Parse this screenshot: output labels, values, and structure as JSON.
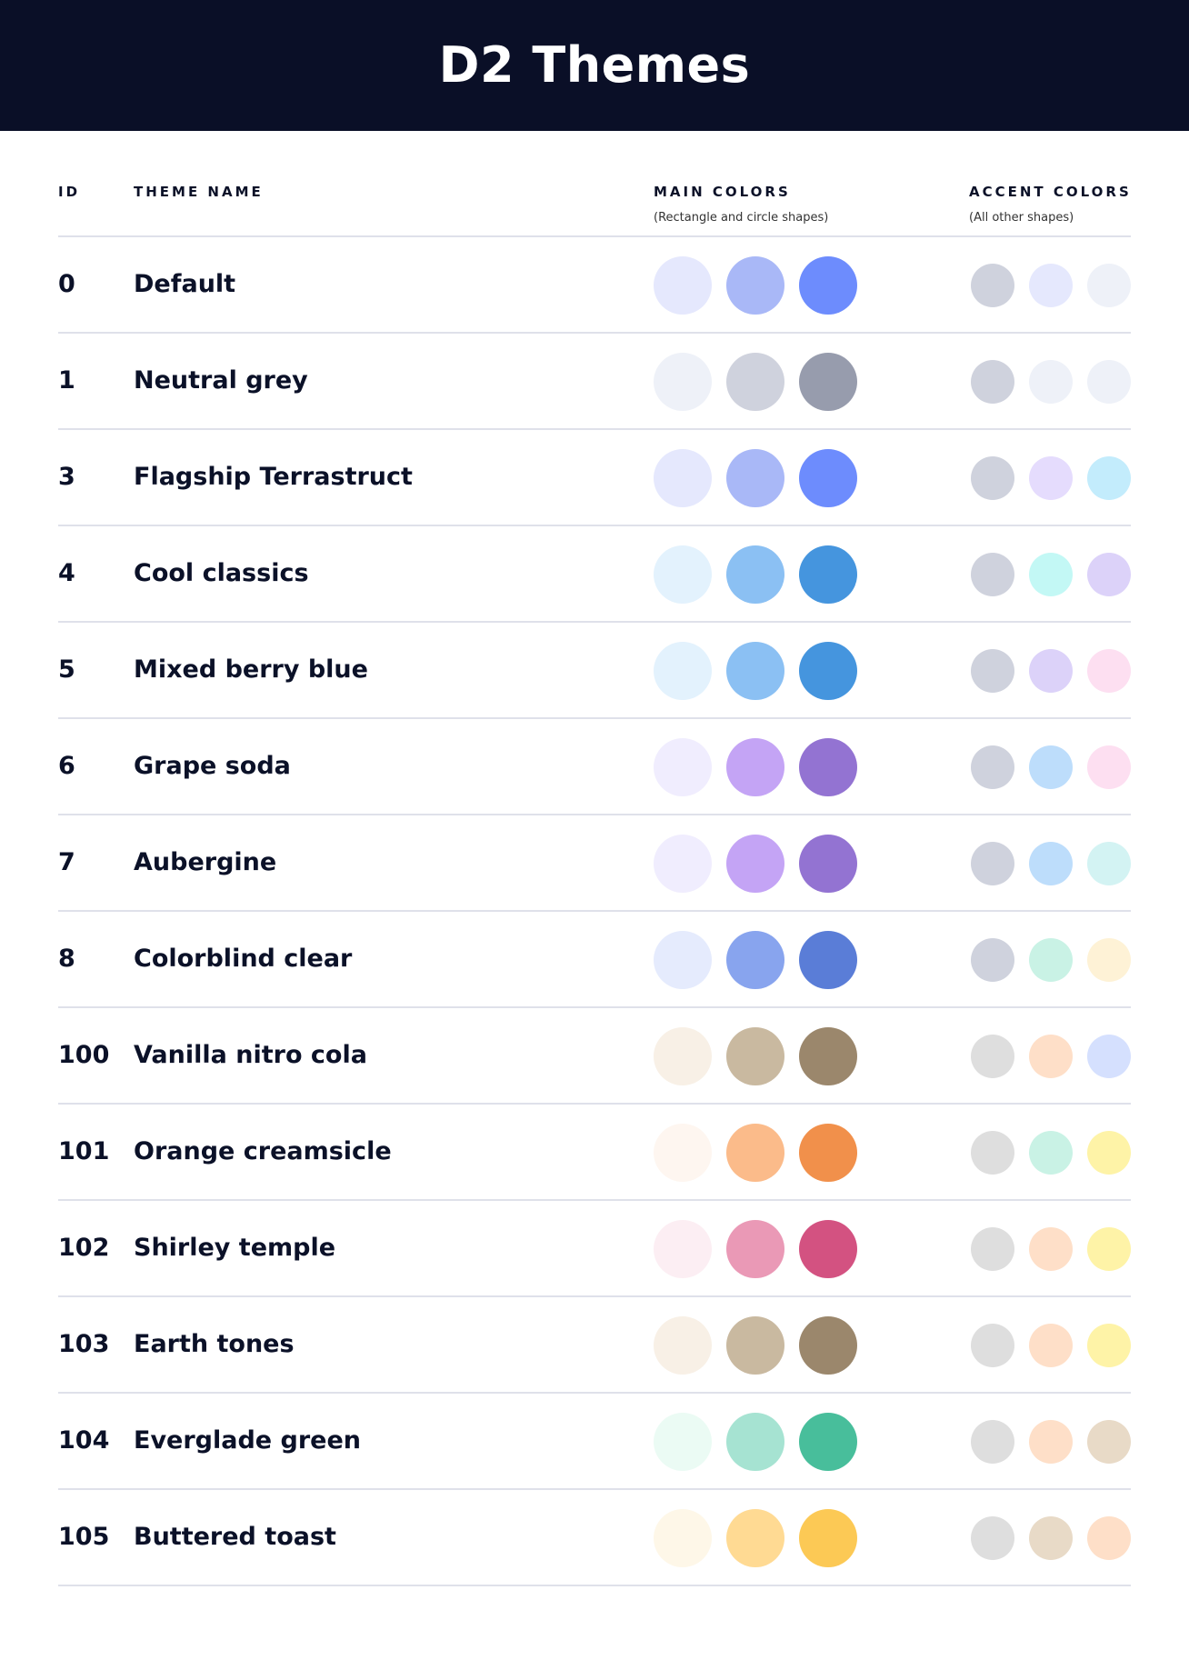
{
  "title": "D2 Themes",
  "headers": {
    "id": "ID",
    "name": "THEME NAME",
    "main": "MAIN COLORS",
    "main_sub": "(Rectangle and circle shapes)",
    "accent": "ACCENT COLORS",
    "accent_sub": "(All other shapes)"
  },
  "themes": [
    {
      "id": "0",
      "name": "Default",
      "main": [
        "#E5E8FD",
        "#A9B8F7",
        "#6D8CFD"
      ],
      "accent": [
        "#CFD2DD",
        "#E5E8FD",
        "#EEF1F8"
      ]
    },
    {
      "id": "1",
      "name": "Neutral grey",
      "main": [
        "#EEF1F8",
        "#CFD2DD",
        "#979CAD"
      ],
      "accent": [
        "#CFD2DD",
        "#EEF1F8",
        "#EEF1F8"
      ]
    },
    {
      "id": "3",
      "name": "Flagship Terrastruct",
      "main": [
        "#E5E8FD",
        "#A9B8F7",
        "#6D8CFD"
      ],
      "accent": [
        "#CFD2DD",
        "#E5DCFD",
        "#C3ECFC"
      ]
    },
    {
      "id": "4",
      "name": "Cool classics",
      "main": [
        "#E3F2FD",
        "#8BC0F3",
        "#4595DE"
      ],
      "accent": [
        "#CFD2DD",
        "#C3F8F5",
        "#DCD2F9"
      ]
    },
    {
      "id": "5",
      "name": "Mixed berry blue",
      "main": [
        "#E3F2FD",
        "#8BC0F3",
        "#4595DE"
      ],
      "accent": [
        "#CFD2DD",
        "#DCD2F9",
        "#FDDFF1"
      ]
    },
    {
      "id": "6",
      "name": "Grape soda",
      "main": [
        "#F0EDFE",
        "#C4A4F5",
        "#9373D2"
      ],
      "accent": [
        "#CFD2DD",
        "#BDDDFB",
        "#FDDFF1"
      ]
    },
    {
      "id": "7",
      "name": "Aubergine",
      "main": [
        "#F0EDFE",
        "#C4A4F5",
        "#9373D2"
      ],
      "accent": [
        "#CFD2DD",
        "#BDDDFB",
        "#D3F3F3"
      ]
    },
    {
      "id": "8",
      "name": "Colorblind clear",
      "main": [
        "#E5EBFD",
        "#88A4EE",
        "#5A7DD7"
      ],
      "accent": [
        "#CFD2DD",
        "#C9F2E5",
        "#FEF2D6"
      ]
    },
    {
      "id": "100",
      "name": "Vanilla nitro cola",
      "main": [
        "#F8F0E6",
        "#C9B9A0",
        "#9B876C"
      ],
      "accent": [
        "#DEDEDE",
        "#FEDFC8",
        "#D5E0FE"
      ]
    },
    {
      "id": "101",
      "name": "Orange creamsicle",
      "main": [
        "#FEF6F0",
        "#FBBB8A",
        "#F1904B"
      ],
      "accent": [
        "#DEDEDE",
        "#C9F2E5",
        "#FEF3A7"
      ]
    },
    {
      "id": "102",
      "name": "Shirley temple",
      "main": [
        "#FCEEF3",
        "#EA99B6",
        "#D35281"
      ],
      "accent": [
        "#DEDEDE",
        "#FEDFC8",
        "#FEF3A7"
      ]
    },
    {
      "id": "103",
      "name": "Earth tones",
      "main": [
        "#F8F0E6",
        "#C9B9A0",
        "#9B876C"
      ],
      "accent": [
        "#DEDEDE",
        "#FEDFC8",
        "#FEF3A7"
      ]
    },
    {
      "id": "104",
      "name": "Everglade green",
      "main": [
        "#EBFBF4",
        "#A6E3D2",
        "#48BE9B"
      ],
      "accent": [
        "#DEDEDE",
        "#FEDFC8",
        "#E8DAC7"
      ]
    },
    {
      "id": "105",
      "name": "Buttered toast",
      "main": [
        "#FEF7E8",
        "#FFDA93",
        "#FCC955"
      ],
      "accent": [
        "#DEDEDE",
        "#E8DAC7",
        "#FEDFC8"
      ]
    }
  ]
}
